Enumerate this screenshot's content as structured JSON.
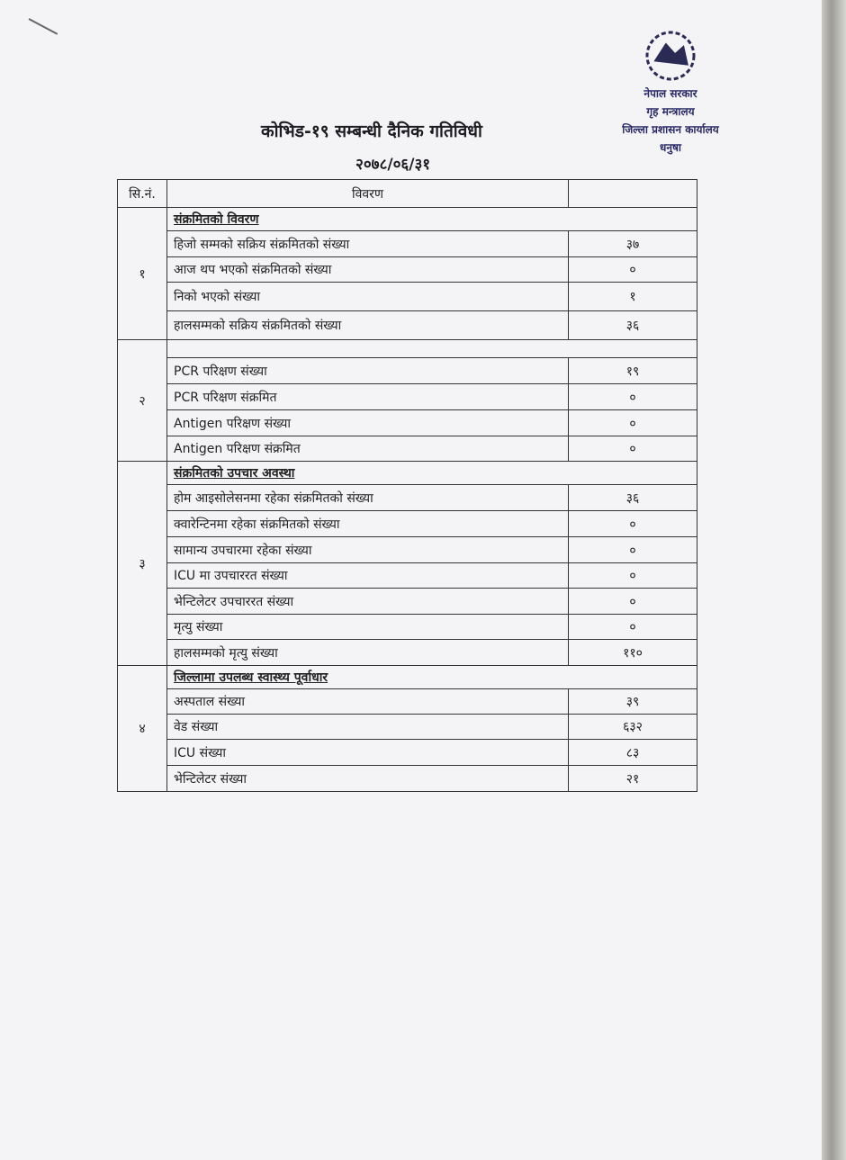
{
  "title": "कोभिड-१९ सम्बन्धी दैनिक गतिविधी",
  "date": "२०७८/०६/३१",
  "stamp": {
    "lines": [
      "नेपाल सरकार",
      "गृह मन्त्रालय",
      "जिल्ला प्रशासन कार्यालय",
      "धनुषा"
    ]
  },
  "table": {
    "headers": [
      "सि.नं.",
      "विवरण",
      ""
    ],
    "sections": [
      {
        "sn": "१",
        "heading": "संक्रमितको विवरण",
        "rows": [
          {
            "label": "हिजो सम्मको सक्रिय संक्रमितको संख्या",
            "value": "३७"
          },
          {
            "label": "आज थप भएको संक्रमितको संख्या",
            "value": "०"
          },
          {
            "label": "निको भएको संख्या",
            "value": "१"
          },
          {
            "label": "हालसम्मको सक्रिय संक्रमितको संख्या",
            "value": "३६"
          }
        ]
      },
      {
        "sn": "२",
        "heading": "",
        "rows": [
          {
            "label": "PCR परिक्षण संख्या",
            "value": "१९"
          },
          {
            "label": "PCR परिक्षण संक्रमित",
            "value": "०"
          },
          {
            "label": "Antigen परिक्षण संख्या",
            "value": "०"
          },
          {
            "label": "Antigen परिक्षण संक्रमित",
            "value": "०"
          }
        ]
      },
      {
        "sn": "३",
        "heading": "संक्रमितको उपचार अवस्था",
        "rows": [
          {
            "label": "होम आइसोलेसनमा रहेका संक्रमितको संख्या",
            "value": "३६"
          },
          {
            "label": "क्वारेन्टिनमा रहेका संक्रमितको संख्या",
            "value": "०"
          },
          {
            "label": "सामान्य उपचारमा रहेका संख्या",
            "value": "०"
          },
          {
            "label": "ICU मा उपचाररत संख्या",
            "value": "०"
          },
          {
            "label": "भेन्टिलेटर उपचाररत संख्या",
            "value": "०"
          },
          {
            "label": "मृत्यु संख्या",
            "value": "०"
          },
          {
            "label": "हालसम्मको मृत्यु संख्या",
            "value": "११०"
          }
        ]
      },
      {
        "sn": "४",
        "heading": "जिल्लामा उपलब्ध स्वास्थ्य पूर्वाधार",
        "rows": [
          {
            "label": "अस्पताल संख्या",
            "value": "३९"
          },
          {
            "label": "वेड संख्या",
            "value": "६३२"
          },
          {
            "label": "ICU संख्या",
            "value": "८३"
          },
          {
            "label": "भेन्टिलेटर संख्या",
            "value": "२१"
          }
        ]
      }
    ]
  }
}
